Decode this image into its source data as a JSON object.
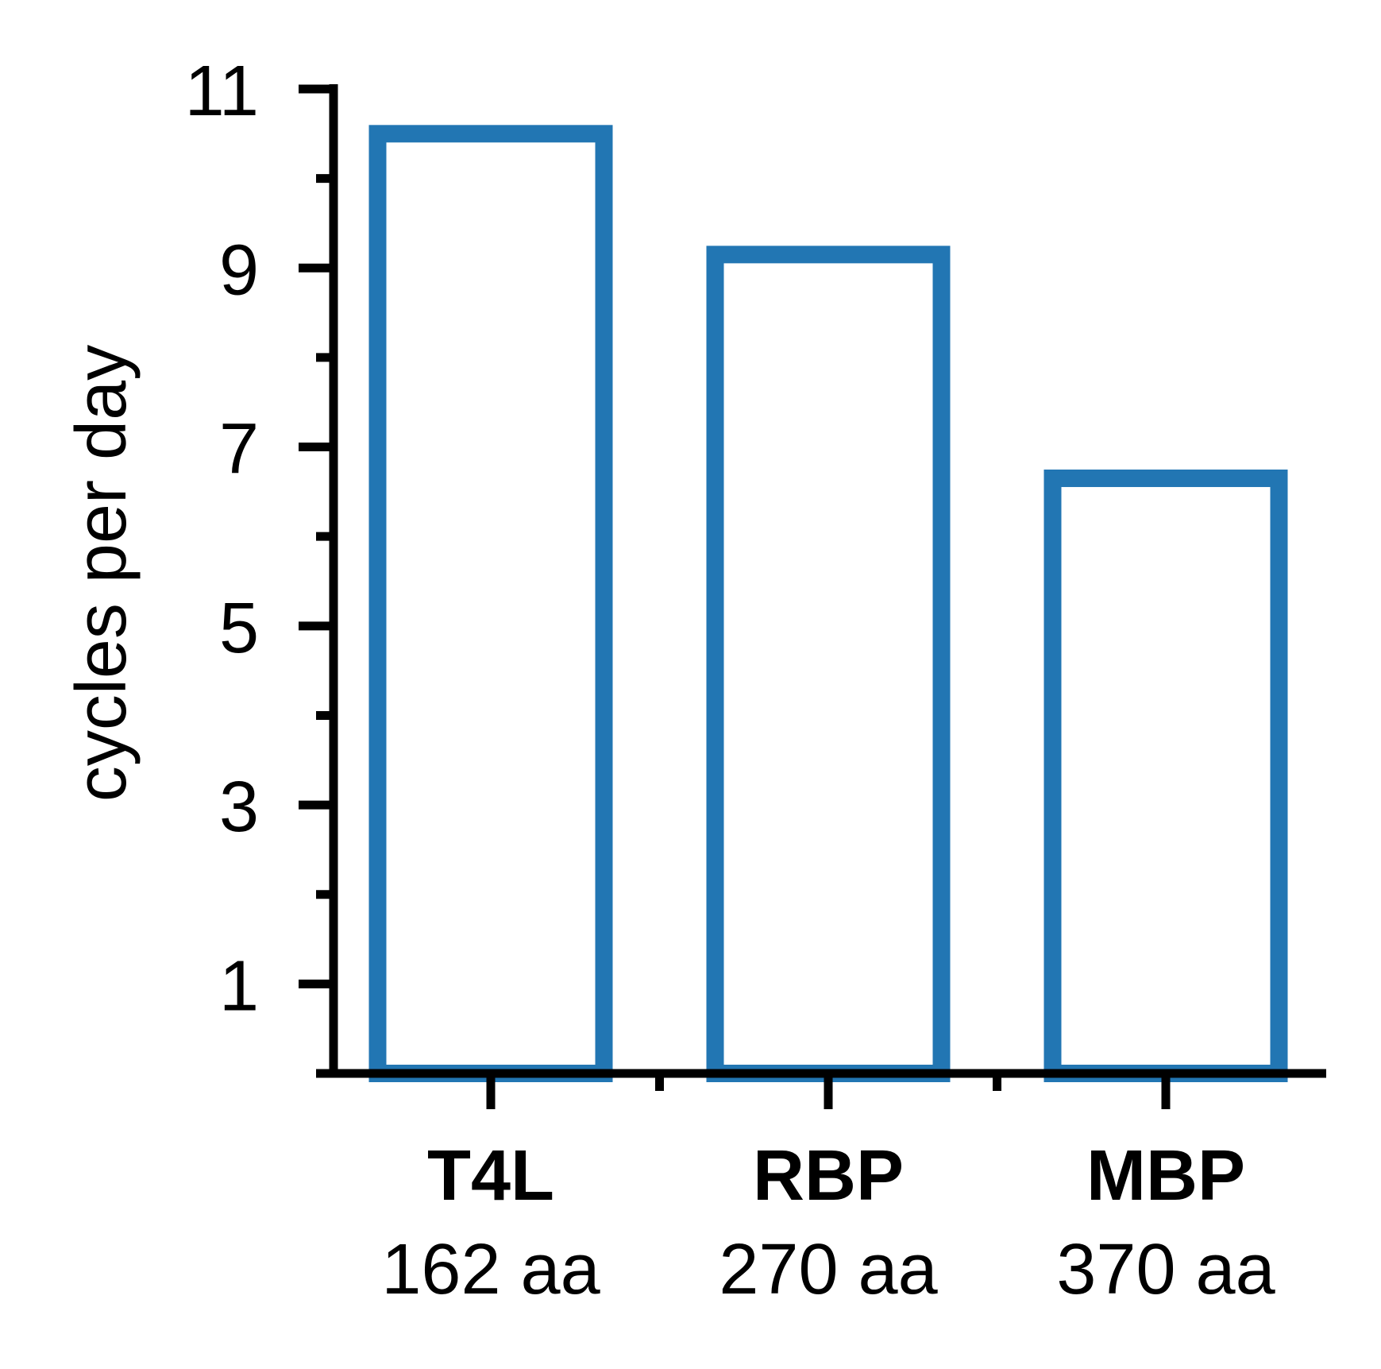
{
  "chart_data": {
    "type": "bar",
    "categories": [
      "T4L",
      "RBP",
      "MBP"
    ],
    "category_sublabels": [
      "162 aa",
      "270 aa",
      "370 aa"
    ],
    "values": [
      10.5,
      9.15,
      6.65
    ],
    "ylabel": "cycles per day",
    "ylim": [
      0,
      11
    ],
    "yticks_major": [
      1,
      3,
      5,
      7,
      9,
      11
    ],
    "yticks_minor": [
      0,
      2,
      4,
      6,
      8,
      10
    ],
    "ytick_labels": [
      "1",
      "3",
      "5",
      "7",
      "9",
      "11"
    ],
    "bar_fill": "none",
    "bar_edge_color": "#2276b3",
    "axis_color": "#000000",
    "grid": false,
    "legend": "none"
  }
}
